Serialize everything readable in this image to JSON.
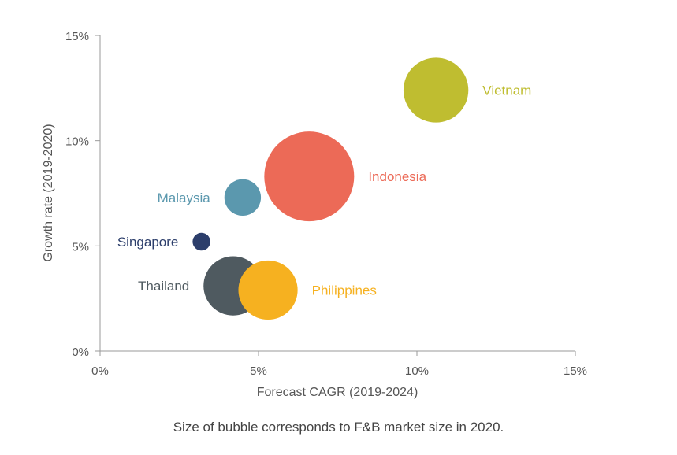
{
  "chart_data": {
    "type": "scatter",
    "xlabel": "Forecast CAGR (2019-2024)",
    "ylabel": "Growth rate (2019-2020)",
    "xlim": [
      0,
      15
    ],
    "ylim": [
      0,
      15
    ],
    "x_ticks": [
      "0%",
      "5%",
      "10%",
      "15%"
    ],
    "y_ticks": [
      "0%",
      "5%",
      "10%",
      "15%"
    ],
    "grid": false,
    "size_note": "Size of bubble corresponds to F&B market size in 2020.",
    "points": [
      {
        "label": "Vietnam",
        "x": 10.6,
        "y": 12.4,
        "size": 1.2,
        "color": "#bfbd30"
      },
      {
        "label": "Indonesia",
        "x": 6.6,
        "y": 8.3,
        "size": 2.3,
        "color": "#ec6a57"
      },
      {
        "label": "Malaysia",
        "x": 4.5,
        "y": 7.3,
        "size": 0.38,
        "color": "#5b98ae"
      },
      {
        "label": "Singapore",
        "x": 3.2,
        "y": 5.2,
        "size": 0.09,
        "color": "#2c3e6b"
      },
      {
        "label": "Thailand",
        "x": 4.2,
        "y": 3.1,
        "size": 1.0,
        "color": "#4f5a60"
      },
      {
        "label": "Philippines",
        "x": 5.3,
        "y": 2.9,
        "size": 1.0,
        "color": "#f6b120"
      }
    ]
  }
}
